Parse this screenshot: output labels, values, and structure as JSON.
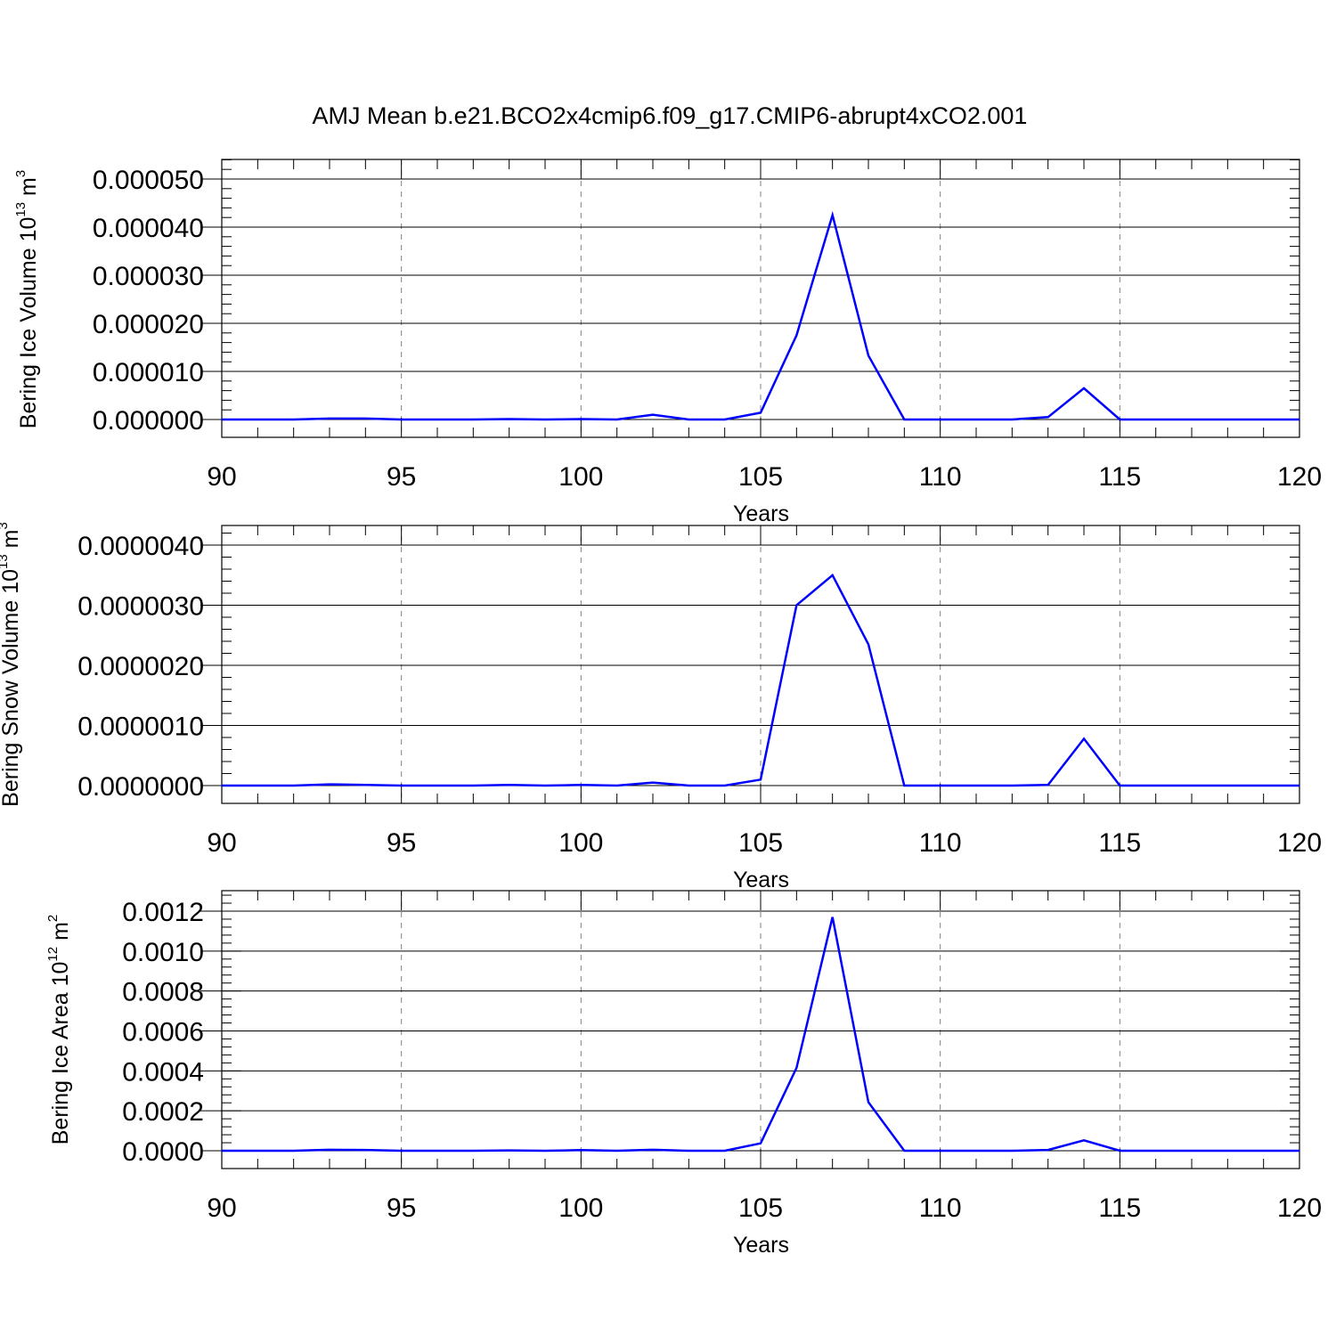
{
  "title": "AMJ Mean b.e21.BCO2x4cmip6.f09_g17.CMIP6-abrupt4xCO2.001",
  "colors": {
    "series": "#0000ff",
    "axis": "#000000",
    "grid": "#808080"
  },
  "chart_data": [
    {
      "type": "line",
      "xlabel": "Years",
      "ylabel_prefix": "Bering Ice Volume 10",
      "ylabel_exponent": "13",
      "ylabel_suffix": " m",
      "ylabel_unit_exponent": "3",
      "xlim": [
        90,
        120
      ],
      "ylim": [
        0,
        5e-05
      ],
      "xticks": [
        90,
        95,
        100,
        105,
        110,
        115,
        120
      ],
      "xtick_labels": [
        "90",
        "95",
        "100",
        "105",
        "110",
        "115",
        "120"
      ],
      "yticks": [
        0,
        1e-05,
        2e-05,
        3e-05,
        4e-05,
        5e-05
      ],
      "ytick_labels": [
        "0.000000",
        "0.000010",
        "0.000020",
        "0.000030",
        "0.000040",
        "0.000050"
      ],
      "grid": "vertical dashed at major x ticks",
      "series": [
        {
          "x": [
            90,
            91,
            92,
            93,
            94,
            95,
            96,
            97,
            98,
            99,
            100,
            101,
            102,
            103,
            104,
            105,
            106,
            107,
            108,
            109,
            110,
            111,
            112,
            113,
            114,
            115,
            116,
            117,
            118,
            119,
            120
          ],
          "values": [
            0,
            0,
            0,
            2e-07,
            2e-07,
            0,
            0,
            0,
            1e-07,
            0,
            1e-07,
            0,
            1e-06,
            0,
            0,
            1.4e-06,
            1.75e-05,
            4.25e-05,
            1.33e-05,
            0,
            0,
            0,
            0,
            5e-07,
            6.5e-06,
            0,
            0,
            0,
            0,
            0,
            0
          ]
        }
      ]
    },
    {
      "type": "line",
      "xlabel": "Years",
      "ylabel_prefix": "Bering Snow Volume 10",
      "ylabel_exponent": "13",
      "ylabel_suffix": " m",
      "ylabel_unit_exponent": "3",
      "xlim": [
        90,
        120
      ],
      "ylim": [
        0,
        4e-06
      ],
      "xticks": [
        90,
        95,
        100,
        105,
        110,
        115,
        120
      ],
      "xtick_labels": [
        "90",
        "95",
        "100",
        "105",
        "110",
        "115",
        "120"
      ],
      "yticks": [
        0,
        1e-06,
        2e-06,
        3e-06,
        4e-06
      ],
      "ytick_labels": [
        "0.0000000",
        "0.0000010",
        "0.0000020",
        "0.0000030",
        "0.0000040"
      ],
      "grid": "vertical dashed at major x ticks",
      "series": [
        {
          "x": [
            90,
            91,
            92,
            93,
            94,
            95,
            96,
            97,
            98,
            99,
            100,
            101,
            102,
            103,
            104,
            105,
            106,
            107,
            108,
            109,
            110,
            111,
            112,
            113,
            114,
            115,
            116,
            117,
            118,
            119,
            120
          ],
          "values": [
            0,
            0,
            0,
            2e-08,
            1e-08,
            0,
            0,
            0,
            1e-08,
            0,
            1e-08,
            0,
            5e-08,
            0,
            0,
            1e-07,
            3e-06,
            3.5e-06,
            2.35e-06,
            0,
            0,
            0,
            0,
            1e-08,
            7.8e-07,
            0,
            0,
            0,
            0,
            0,
            0
          ]
        }
      ]
    },
    {
      "type": "line",
      "xlabel": "Years",
      "ylabel_prefix": "Bering Ice Area 10",
      "ylabel_exponent": "12",
      "ylabel_suffix": " m",
      "ylabel_unit_exponent": "2",
      "xlim": [
        90,
        120
      ],
      "ylim": [
        0,
        0.0012
      ],
      "xticks": [
        90,
        95,
        100,
        105,
        110,
        115,
        120
      ],
      "xtick_labels": [
        "90",
        "95",
        "100",
        "105",
        "110",
        "115",
        "120"
      ],
      "yticks": [
        0,
        0.0002,
        0.0004,
        0.0006,
        0.0008,
        0.001,
        0.0012
      ],
      "ytick_labels": [
        "0.0000",
        "0.0002",
        "0.0004",
        "0.0006",
        "0.0008",
        "0.0010",
        "0.0012"
      ],
      "grid": "vertical dashed at major x ticks",
      "series": [
        {
          "x": [
            90,
            91,
            92,
            93,
            94,
            95,
            96,
            97,
            98,
            99,
            100,
            101,
            102,
            103,
            104,
            105,
            106,
            107,
            108,
            109,
            110,
            111,
            112,
            113,
            114,
            115,
            116,
            117,
            118,
            119,
            120
          ],
          "values": [
            0,
            0,
            0,
            5e-06,
            4e-06,
            0,
            0,
            0,
            2e-06,
            0,
            3e-06,
            0,
            5e-06,
            0,
            0,
            3.7e-05,
            0.000415,
            0.00117,
            0.000243,
            0,
            0,
            0,
            0,
            4e-06,
            5.2e-05,
            0,
            0,
            0,
            0,
            0,
            0
          ]
        }
      ]
    }
  ]
}
